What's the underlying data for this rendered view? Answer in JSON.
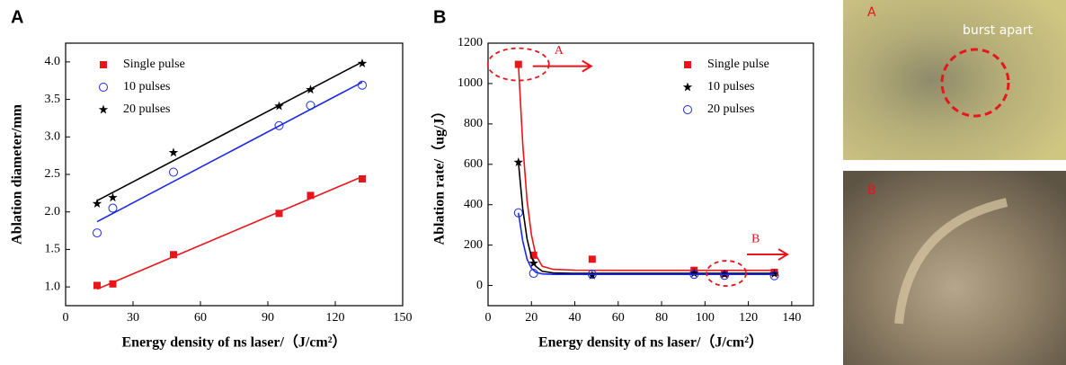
{
  "chart_data": [
    {
      "type": "scatter",
      "panel": "A",
      "xlabel": "Energy density of ns laser/（J/cm²）",
      "ylabel": "Ablation diameter/mm",
      "xlim": [
        0,
        150
      ],
      "xticks": [
        0,
        30,
        60,
        90,
        120,
        150
      ],
      "ylim": [
        0.75,
        4.25
      ],
      "yticks": [
        {
          "value": 1,
          "label": "1.0"
        },
        1.5,
        {
          "value": 2,
          "label": "2.0"
        },
        2.5,
        {
          "value": 3,
          "label": "3.0"
        },
        3.5,
        {
          "value": 4,
          "label": "4.0"
        }
      ],
      "legend": "upper left",
      "series": [
        {
          "name": "Single pulse",
          "color": "#e8151b",
          "marker": "square",
          "x": [
            14,
            21,
            48,
            95,
            109,
            132
          ],
          "values": [
            1.02,
            1.04,
            1.43,
            1.98,
            2.22,
            2.44
          ],
          "fit": {
            "x": [
              14,
              132
            ],
            "values": [
              0.97,
              2.47
            ]
          }
        },
        {
          "name": "10 pulses",
          "color": "#1a28e6",
          "marker": "circle",
          "x": [
            14,
            21,
            48,
            95,
            109,
            132
          ],
          "values": [
            1.72,
            2.05,
            2.53,
            3.15,
            3.42,
            3.69
          ],
          "fit": {
            "x": [
              14,
              132
            ],
            "values": [
              1.87,
              3.73
            ]
          }
        },
        {
          "name": "20 pulses",
          "color": "#000000",
          "marker": "star",
          "x": [
            14,
            21,
            48,
            95,
            109,
            132
          ],
          "values": [
            2.11,
            2.19,
            2.79,
            3.41,
            3.63,
            3.98
          ],
          "fit": {
            "x": [
              14,
              132
            ],
            "values": [
              2.15,
              4.0
            ]
          }
        }
      ]
    },
    {
      "type": "scatter",
      "panel": "B",
      "xlabel": "Energy density of ns laser/（J/cm²）",
      "ylabel": "Ablation rate/（ug/J）",
      "xlim": [
        0,
        150
      ],
      "xticks": [
        0,
        20,
        40,
        60,
        80,
        100,
        120,
        140
      ],
      "ylim": [
        -100,
        1200
      ],
      "yticks": [
        0,
        200,
        400,
        600,
        800,
        1000,
        1200
      ],
      "legend": "upper right",
      "annotations": [
        "A",
        "B"
      ],
      "series": [
        {
          "name": "Single pulse",
          "color": "#e8151b",
          "marker": "square",
          "x": [
            14,
            21,
            48,
            95,
            109,
            132
          ],
          "values": [
            1095,
            150,
            130,
            75,
            60,
            65
          ],
          "fit": {
            "x": [
              14,
              16,
              18,
              20,
              22,
              25,
              30,
              40,
              60,
              132
            ],
            "values": [
              1095,
              700,
              420,
              250,
              150,
              95,
              80,
              76,
              75,
              75
            ]
          }
        },
        {
          "name": "10 pulses",
          "color": "#000000",
          "marker": "star",
          "x": [
            14,
            21,
            48,
            95,
            109,
            132
          ],
          "values": [
            610,
            110,
            50,
            60,
            55,
            58
          ],
          "fit": {
            "x": [
              14,
              16,
              18,
              20,
              22,
              25,
              30,
              40,
              60,
              132
            ],
            "values": [
              610,
              380,
              230,
              140,
              95,
              70,
              62,
              60,
              60,
              60
            ]
          }
        },
        {
          "name": "20 pulses",
          "color": "#1a28e6",
          "marker": "circle",
          "x": [
            14,
            21,
            48,
            95,
            109,
            132
          ],
          "values": [
            360,
            60,
            55,
            55,
            50,
            48
          ],
          "fit": {
            "x": [
              14,
              16,
              18,
              20,
              22,
              25,
              30,
              40,
              60,
              132
            ],
            "values": [
              360,
              220,
              130,
              85,
              65,
              57,
              55,
              55,
              55,
              55
            ]
          }
        }
      ]
    }
  ],
  "photos": [
    {
      "label": "A",
      "annotation": "burst apart"
    },
    {
      "label": "B"
    }
  ]
}
